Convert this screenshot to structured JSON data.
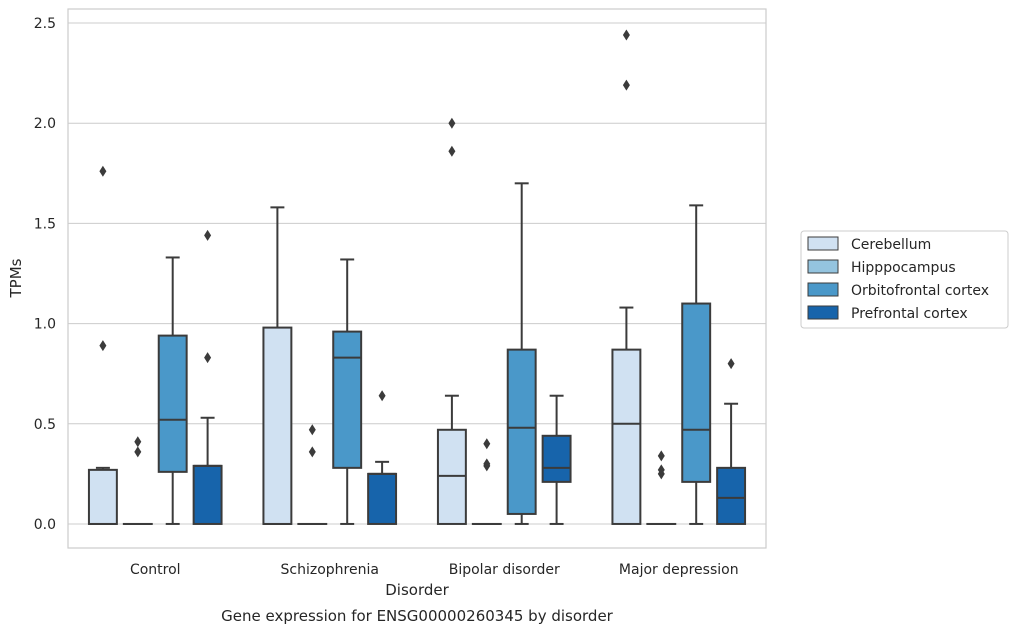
{
  "chart_data": {
    "type": "box",
    "title": "Gene expression for ENSG00000260345 by disorder",
    "xlabel": "Disorder",
    "ylabel": "TPMs",
    "categories": [
      "Control",
      "Schizophrenia",
      "Bipolar disorder",
      "Major depression"
    ],
    "ylim": [
      -0.12,
      2.57
    ],
    "yticks": [
      0.0,
      0.5,
      1.0,
      1.5,
      2.0,
      2.5
    ],
    "ytick_labels": [
      "0.0",
      "0.5",
      "1.0",
      "1.5",
      "2.0",
      "2.5"
    ],
    "grid": true,
    "legend_position": "right",
    "series": [
      {
        "name": "Cerebellum",
        "color": "#d0e1f2",
        "boxes": [
          {
            "whislo": 0.0,
            "q1": 0.0,
            "med": 0.0,
            "q3": 0.27,
            "whishi": 0.28,
            "fliers": [
              0.89,
              1.76
            ]
          },
          {
            "whislo": 0.0,
            "q1": 0.0,
            "med": 0.0,
            "q3": 0.98,
            "whishi": 1.58,
            "fliers": []
          },
          {
            "whislo": 0.0,
            "q1": 0.0,
            "med": 0.24,
            "q3": 0.47,
            "whishi": 0.64,
            "fliers": [
              1.86,
              2.0
            ]
          },
          {
            "whislo": 0.0,
            "q1": 0.0,
            "med": 0.5,
            "q3": 0.87,
            "whishi": 1.08,
            "fliers": [
              2.19,
              2.44
            ]
          }
        ]
      },
      {
        "name": "Hipppocampus",
        "color": "#94c4df",
        "boxes": [
          {
            "whislo": 0.0,
            "q1": 0.0,
            "med": 0.0,
            "q3": 0.0,
            "whishi": 0.0,
            "fliers": [
              0.36,
              0.41
            ]
          },
          {
            "whislo": 0.0,
            "q1": 0.0,
            "med": 0.0,
            "q3": 0.0,
            "whishi": 0.0,
            "fliers": [
              0.36,
              0.47
            ]
          },
          {
            "whislo": 0.0,
            "q1": 0.0,
            "med": 0.0,
            "q3": 0.0,
            "whishi": 0.0,
            "fliers": [
              0.29,
              0.3,
              0.4
            ]
          },
          {
            "whislo": 0.0,
            "q1": 0.0,
            "med": 0.0,
            "q3": 0.0,
            "whishi": 0.0,
            "fliers": [
              0.25,
              0.27,
              0.34
            ]
          }
        ]
      },
      {
        "name": "Orbitofrontal cortex",
        "color": "#4a98c9",
        "boxes": [
          {
            "whislo": 0.0,
            "q1": 0.26,
            "med": 0.52,
            "q3": 0.94,
            "whishi": 1.33,
            "fliers": []
          },
          {
            "whislo": 0.0,
            "q1": 0.28,
            "med": 0.83,
            "q3": 0.96,
            "whishi": 1.32,
            "fliers": []
          },
          {
            "whislo": 0.0,
            "q1": 0.05,
            "med": 0.48,
            "q3": 0.87,
            "whishi": 1.7,
            "fliers": []
          },
          {
            "whislo": 0.0,
            "q1": 0.21,
            "med": 0.47,
            "q3": 1.1,
            "whishi": 1.59,
            "fliers": []
          }
        ]
      },
      {
        "name": "Prefrontal cortex",
        "color": "#1764ab",
        "boxes": [
          {
            "whislo": 0.0,
            "q1": 0.0,
            "med": 0.29,
            "q3": 0.29,
            "whishi": 0.53,
            "fliers": [
              0.83,
              1.44
            ]
          },
          {
            "whislo": 0.0,
            "q1": 0.0,
            "med": 0.25,
            "q3": 0.25,
            "whishi": 0.31,
            "fliers": [
              0.64
            ]
          },
          {
            "whislo": 0.0,
            "q1": 0.21,
            "med": 0.28,
            "q3": 0.44,
            "whishi": 0.64,
            "fliers": []
          },
          {
            "whislo": 0.0,
            "q1": 0.0,
            "med": 0.13,
            "q3": 0.28,
            "whishi": 0.6,
            "fliers": [
              0.8
            ]
          }
        ]
      }
    ]
  }
}
